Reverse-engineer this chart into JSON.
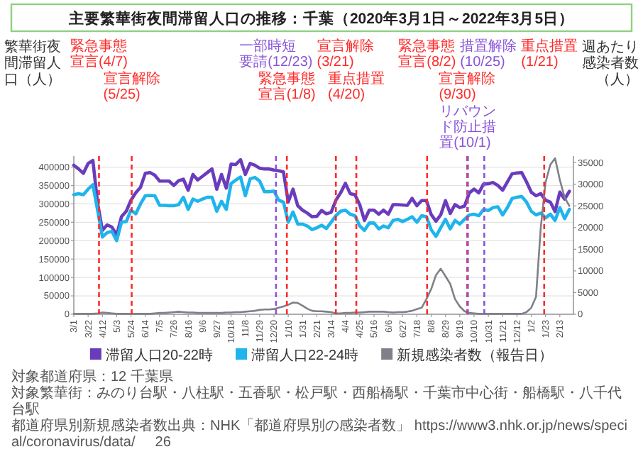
{
  "chart_data": {
    "type": "line",
    "title": "主要繁華街夜間滞留人口の推移：千葉（2020年3月1日～2022年3月5日）",
    "ylabel": "繁華街夜間滞留人口（人）",
    "y2label": "週あたり感染者数（人）",
    "x": [
      "2020-03-01",
      "2020-03-08",
      "2020-03-15",
      "2020-03-22",
      "2020-03-29",
      "2020-04-05",
      "2020-04-12",
      "2020-04-19",
      "2020-04-26",
      "2020-05-03",
      "2020-05-10",
      "2020-05-17",
      "2020-05-24",
      "2020-05-31",
      "2020-06-07",
      "2020-06-14",
      "2020-06-21",
      "2020-06-28",
      "2020-07-05",
      "2020-07-12",
      "2020-07-19",
      "2020-07-26",
      "2020-08-02",
      "2020-08-09",
      "2020-08-16",
      "2020-08-23",
      "2020-08-30",
      "2020-09-06",
      "2020-09-13",
      "2020-09-20",
      "2020-09-27",
      "2020-10-04",
      "2020-10-11",
      "2020-10-18",
      "2020-10-25",
      "2020-11-01",
      "2020-11-08",
      "2020-11-15",
      "2020-11-22",
      "2020-11-29",
      "2020-12-06",
      "2020-12-13",
      "2020-12-20",
      "2020-12-27",
      "2021-01-03",
      "2021-01-10",
      "2021-01-17",
      "2021-01-24",
      "2021-01-31",
      "2021-02-07",
      "2021-02-14",
      "2021-02-21",
      "2021-02-28",
      "2021-03-07",
      "2021-03-14",
      "2021-03-21",
      "2021-03-28",
      "2021-04-04",
      "2021-04-11",
      "2021-04-18",
      "2021-04-25",
      "2021-05-02",
      "2021-05-09",
      "2021-05-16",
      "2021-05-23",
      "2021-05-30",
      "2021-06-06",
      "2021-06-13",
      "2021-06-20",
      "2021-06-27",
      "2021-07-04",
      "2021-07-11",
      "2021-07-18",
      "2021-07-25",
      "2021-08-01",
      "2021-08-08",
      "2021-08-15",
      "2021-08-22",
      "2021-08-29",
      "2021-09-05",
      "2021-09-12",
      "2021-09-19",
      "2021-09-26",
      "2021-10-03",
      "2021-10-10",
      "2021-10-17",
      "2021-10-24",
      "2021-10-31",
      "2021-11-07",
      "2021-11-14",
      "2021-11-21",
      "2021-11-28",
      "2021-12-05",
      "2021-12-12",
      "2021-12-19",
      "2021-12-26",
      "2022-01-02",
      "2022-01-09",
      "2022-01-16",
      "2022-01-23",
      "2022-01-30",
      "2022-02-06",
      "2022-02-13",
      "2022-02-20",
      "2022-02-27"
    ],
    "series": [
      {
        "name": "滞留人口20-22時",
        "color": "#6a3cbc",
        "values": [
          405000,
          395000,
          383000,
          410000,
          418000,
          302000,
          228000,
          243000,
          237000,
          215000,
          265000,
          280000,
          310000,
          330000,
          345000,
          383000,
          385000,
          378000,
          362000,
          362000,
          362000,
          350000,
          363000,
          367000,
          337000,
          380000,
          365000,
          375000,
          385000,
          395000,
          340000,
          380000,
          343000,
          408000,
          407000,
          420000,
          380000,
          410000,
          405000,
          397000,
          395000,
          395000,
          392000,
          390000,
          387000,
          305000,
          340000,
          295000,
          283000,
          275000,
          265000,
          266000,
          282000,
          273000,
          277000,
          310000,
          330000,
          356000,
          328000,
          325000,
          298000,
          255000,
          283000,
          283000,
          272000,
          283000,
          272000,
          298000,
          298000,
          297000,
          296000,
          315000,
          295000,
          309000,
          309000,
          271000,
          253000,
          270000,
          309000,
          274000,
          298000,
          290000,
          294000,
          330000,
          340000,
          330000,
          354000,
          355000,
          358000,
          350000,
          337000,
          360000,
          382000,
          384000,
          385000,
          360000,
          332000,
          322000,
          328000,
          310000,
          305000,
          279000,
          332000,
          313000,
          334000
        ]
      },
      {
        "name": "滞留人口22-24時",
        "color": "#1fb4ec",
        "values": [
          325000,
          328000,
          325000,
          340000,
          352000,
          283000,
          210000,
          222000,
          225000,
          200000,
          250000,
          252000,
          283000,
          273000,
          300000,
          322000,
          323000,
          322000,
          296000,
          296000,
          295000,
          295000,
          298000,
          318000,
          285000,
          313000,
          307000,
          313000,
          318000,
          318000,
          280000,
          307000,
          285000,
          355000,
          365000,
          373000,
          322000,
          368000,
          372000,
          362000,
          333000,
          333000,
          335000,
          310000,
          305000,
          250000,
          278000,
          245000,
          245000,
          240000,
          230000,
          235000,
          242000,
          233000,
          250000,
          268000,
          280000,
          283000,
          272000,
          268000,
          240000,
          228000,
          248000,
          248000,
          232000,
          240000,
          235000,
          255000,
          258000,
          252000,
          258000,
          265000,
          250000,
          268000,
          265000,
          230000,
          212000,
          235000,
          258000,
          232000,
          255000,
          245000,
          258000,
          270000,
          272000,
          268000,
          285000,
          282000,
          290000,
          292000,
          270000,
          290000,
          315000,
          318000,
          320000,
          305000,
          280000,
          270000,
          275000,
          262000,
          272000,
          255000,
          290000,
          260000,
          285000
        ]
      },
      {
        "name": "新規感染者数（報告日）",
        "color": "#80808a",
        "axis": "y2",
        "values": [
          100,
          100,
          100,
          100,
          100,
          200,
          400,
          300,
          200,
          100,
          100,
          100,
          100,
          100,
          100,
          100,
          100,
          200,
          300,
          300,
          400,
          500,
          600,
          500,
          400,
          400,
          300,
          300,
          300,
          300,
          300,
          300,
          400,
          400,
          500,
          500,
          600,
          700,
          800,
          1000,
          1100,
          1100,
          1200,
          1500,
          1800,
          2200,
          2700,
          2600,
          2000,
          1300,
          800,
          700,
          700,
          600,
          500,
          200,
          200,
          300,
          300,
          400,
          400,
          500,
          600,
          600,
          600,
          600,
          500,
          400,
          500,
          500,
          600,
          800,
          1200,
          1500,
          3500,
          5800,
          9000,
          10500,
          8800,
          7000,
          3500,
          1800,
          700,
          300,
          200,
          100,
          100,
          100,
          100,
          100,
          100,
          100,
          100,
          100,
          100,
          500,
          1500,
          4000,
          20000,
          30400,
          34500,
          36000,
          31000,
          27000,
          25000
        ]
      }
    ],
    "xlim": [
      "2020-03-01",
      "2022-03-05"
    ],
    "xticks": [
      {
        "value": "2020-03-01",
        "label": "3/1"
      },
      {
        "value": "2020-03-22",
        "label": "3/22"
      },
      {
        "value": "2020-04-12",
        "label": "4/12"
      },
      {
        "value": "2020-05-03",
        "label": "5/3"
      },
      {
        "value": "2020-05-24",
        "label": "5/24"
      },
      {
        "value": "2020-06-14",
        "label": "6/14"
      },
      {
        "value": "2020-07-05",
        "label": "7/5"
      },
      {
        "value": "2020-07-26",
        "label": "7/26"
      },
      {
        "value": "2020-08-16",
        "label": "8/16"
      },
      {
        "value": "2020-09-06",
        "label": "9/6"
      },
      {
        "value": "2020-09-27",
        "label": "9/27"
      },
      {
        "value": "2020-10-18",
        "label": "10/18"
      },
      {
        "value": "2020-11-08",
        "label": "11/8"
      },
      {
        "value": "2020-11-29",
        "label": "11/29"
      },
      {
        "value": "2020-12-20",
        "label": "12/20"
      },
      {
        "value": "2021-01-10",
        "label": "1/10"
      },
      {
        "value": "2021-01-31",
        "label": "1/31"
      },
      {
        "value": "2021-02-21",
        "label": "2/21"
      },
      {
        "value": "2021-03-14",
        "label": "3/14"
      },
      {
        "value": "2021-04-04",
        "label": "4/4"
      },
      {
        "value": "2021-04-25",
        "label": "4/25"
      },
      {
        "value": "2021-05-16",
        "label": "5/16"
      },
      {
        "value": "2021-06-06",
        "label": "6/6"
      },
      {
        "value": "2021-06-27",
        "label": "6/27"
      },
      {
        "value": "2021-07-18",
        "label": "7/18"
      },
      {
        "value": "2021-08-08",
        "label": "8/8"
      },
      {
        "value": "2021-08-29",
        "label": "8/29"
      },
      {
        "value": "2021-09-19",
        "label": "9/19"
      },
      {
        "value": "2021-10-10",
        "label": "10/10"
      },
      {
        "value": "2021-10-31",
        "label": "10/31"
      },
      {
        "value": "2021-11-21",
        "label": "11/21"
      },
      {
        "value": "2021-12-12",
        "label": "12/12"
      },
      {
        "value": "2022-01-02",
        "label": "1/2"
      },
      {
        "value": "2022-01-23",
        "label": "1/23"
      },
      {
        "value": "2022-02-13",
        "label": "2/13"
      }
    ],
    "ylim": [
      0,
      430000
    ],
    "yticks": [
      0,
      50000,
      100000,
      150000,
      200000,
      250000,
      300000,
      350000,
      400000
    ],
    "y2lim": [
      0,
      36500
    ],
    "y2ticks": [
      0,
      5000,
      10000,
      15000,
      20000,
      25000,
      30000,
      35000
    ],
    "ref_lines": [
      {
        "axis": "x",
        "value": "2020-04-07",
        "label": "緊急事態宣言(4/7)",
        "color": "#ff2a2a",
        "line_style": "dashed"
      },
      {
        "axis": "x",
        "value": "2020-05-25",
        "label": "宣言解除(5/25)",
        "color": "#ff2a2a",
        "line_style": "dashed"
      },
      {
        "axis": "x",
        "value": "2020-12-23",
        "label": "一部時短要請(12/23)",
        "color": "#8a55d8",
        "line_style": "dashed"
      },
      {
        "axis": "x",
        "value": "2021-01-08",
        "label": "緊急事態宣言(1/8)",
        "color": "#ff2a2a",
        "line_style": "dashed"
      },
      {
        "axis": "x",
        "value": "2021-03-21",
        "label": "宣言解除(3/21)",
        "color": "#ff2a2a",
        "line_style": "dashed"
      },
      {
        "axis": "x",
        "value": "2021-04-20",
        "label": "重点措置(4/20)",
        "color": "#ff2a2a",
        "line_style": "dashed"
      },
      {
        "axis": "x",
        "value": "2021-08-02",
        "label": "緊急事態宣言(8/2)",
        "color": "#ff2a2a",
        "line_style": "dashed"
      },
      {
        "axis": "x",
        "value": "2021-09-30",
        "label": "宣言解除(9/30)",
        "color": "#ff2a2a",
        "line_style": "dashed"
      },
      {
        "axis": "x",
        "value": "2021-10-01",
        "label": "リバウンド防止措置(10/1)",
        "color": "#8a55d8",
        "line_style": "dashed"
      },
      {
        "axis": "x",
        "value": "2021-10-25",
        "label": "措置解除(10/25)",
        "color": "#8a55d8",
        "line_style": "dashed"
      },
      {
        "axis": "x",
        "value": "2022-01-21",
        "label": "重点措置(1/21)",
        "color": "#ff2a2a",
        "line_style": "dashed"
      }
    ],
    "annotations": [
      "対象都道府県：12 千葉県",
      "対象繁華街：みのり台駅・八柱駅・五香駅・松戸駅・西船橋駅・千葉市中心街・船橋駅・八千代台駅",
      "都道府県別新規感染者数出典：NHK「都道府県別の感染者数」 https://www3.nhk.or.jp/news/special/coronavirus/data/",
      "26"
    ],
    "grid": "y",
    "legend": "bottom"
  }
}
